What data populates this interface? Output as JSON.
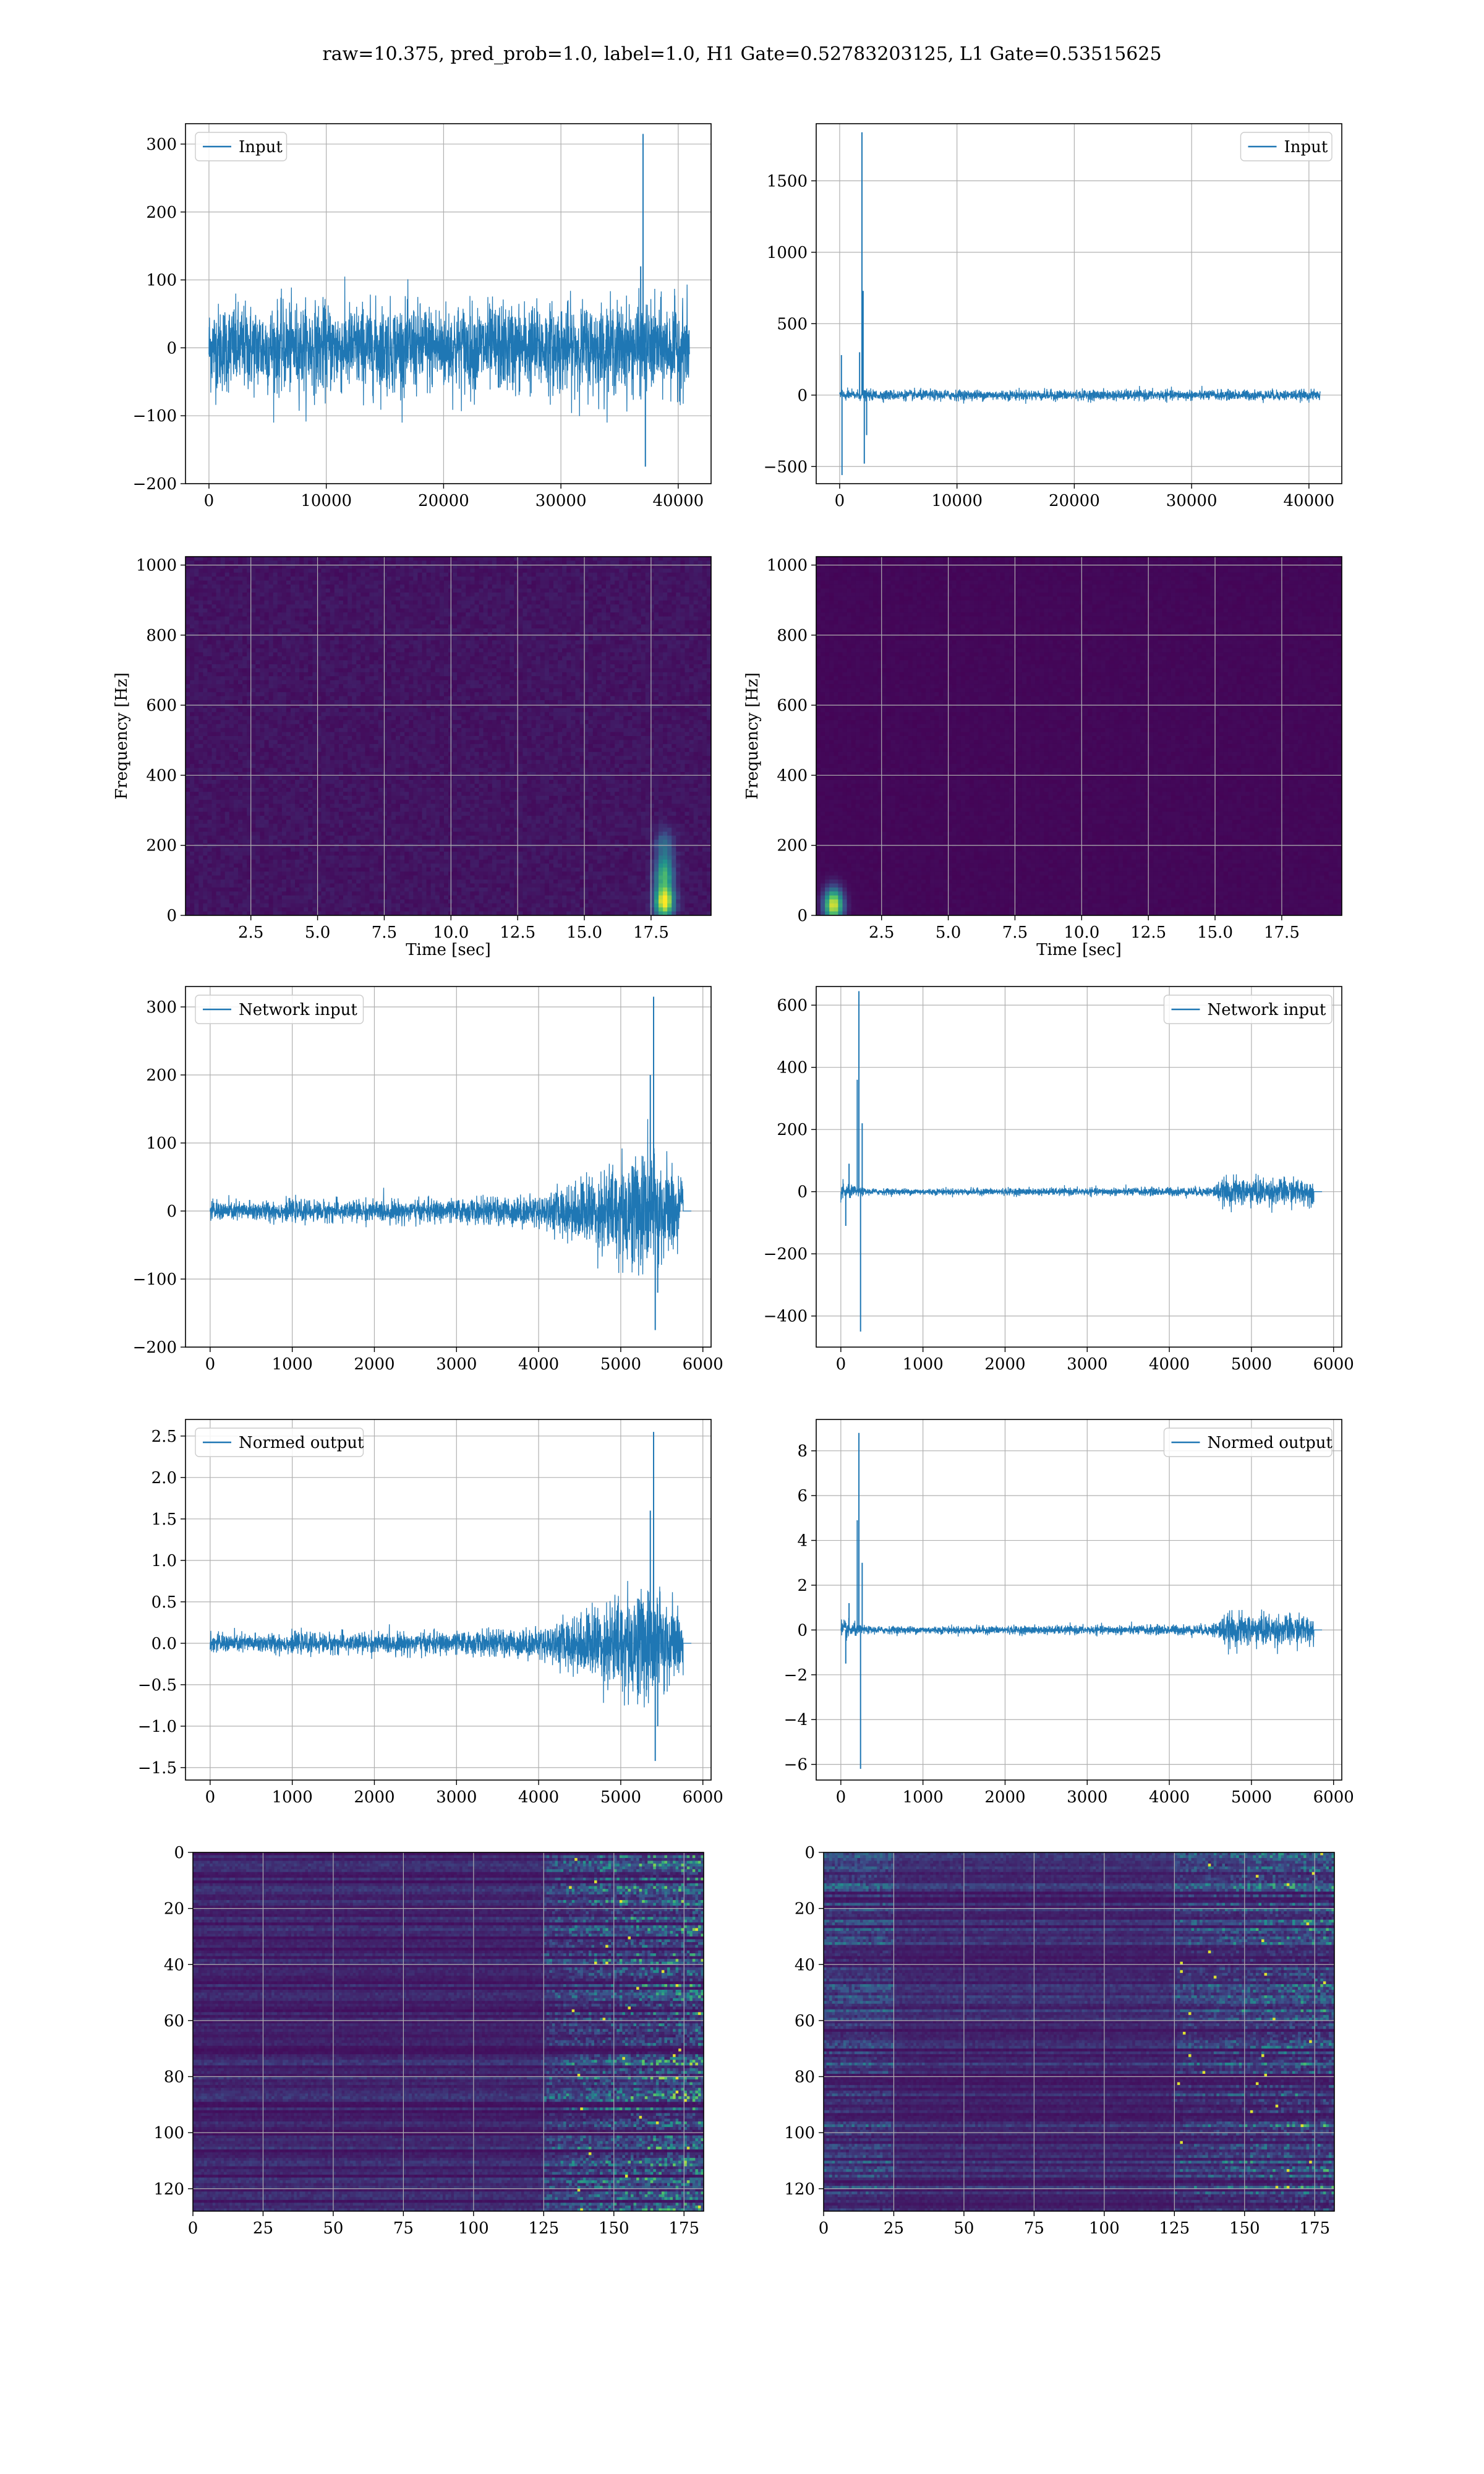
{
  "figure": {
    "suptitle": "raw=10.375, pred_prob=1.0, label=1.0, H1 Gate=0.52783203125, L1 Gate=0.53515625"
  },
  "colors": {
    "line": "#1f77b4",
    "grid": "#b0b0b0",
    "viridis_dark": "#440154",
    "viridis_bright": "#fde725"
  },
  "chart_data": [
    {
      "id": "h1-input",
      "type": "line",
      "legend": [
        "Input"
      ],
      "legend_loc": "upper left",
      "xlim": [
        -2000,
        42800
      ],
      "ylim": [
        -200,
        330
      ],
      "xticks": [
        0,
        10000,
        20000,
        30000,
        40000
      ],
      "yticks": [
        -200,
        -100,
        0,
        100,
        200,
        300
      ],
      "xticklabels": [
        "0",
        "10000",
        "20000",
        "30000",
        "40000"
      ],
      "yticklabels": [
        "−200",
        "−100",
        "0",
        "100",
        "200",
        "300"
      ],
      "xlabel": "",
      "ylabel": "",
      "grid": true,
      "series": [
        {
          "x": [
            0,
            40960
          ],
          "noise_sigma": 32,
          "noise_clip": 110,
          "envelope": [
            [
              0,
              1
            ],
            [
              40960,
              1
            ]
          ],
          "spikes": [
            [
              37000,
              315
            ],
            [
              37200,
              -175
            ],
            [
              36800,
              120
            ]
          ]
        }
      ]
    },
    {
      "id": "l1-input",
      "type": "line",
      "legend": [
        "Input"
      ],
      "legend_loc": "upper right",
      "xlim": [
        -2000,
        42800
      ],
      "ylim": [
        -620,
        1900
      ],
      "xticks": [
        0,
        10000,
        20000,
        30000,
        40000
      ],
      "yticks": [
        -500,
        0,
        500,
        1000,
        1500
      ],
      "xticklabels": [
        "0",
        "10000",
        "20000",
        "30000",
        "40000"
      ],
      "yticklabels": [
        "−500",
        "0",
        "500",
        "1000",
        "1500"
      ],
      "xlabel": "",
      "ylabel": "",
      "grid": true,
      "series": [
        {
          "x": [
            0,
            40960
          ],
          "noise_sigma": 18,
          "noise_clip": 100,
          "envelope": [
            [
              0,
              1
            ],
            [
              40960,
              1
            ]
          ],
          "spikes": [
            [
              1900,
              1840
            ],
            [
              2000,
              730
            ],
            [
              2100,
              -480
            ],
            [
              200,
              -560
            ],
            [
              150,
              280
            ],
            [
              1700,
              300
            ],
            [
              2300,
              -280
            ]
          ]
        }
      ]
    },
    {
      "id": "h1-spectrogram",
      "type": "heatmap",
      "colormap": "viridis",
      "xlim": [
        0.05,
        19.75
      ],
      "ylim": [
        0,
        1024
      ],
      "xticks": [
        2.5,
        5.0,
        7.5,
        10.0,
        12.5,
        15.0,
        17.5
      ],
      "yticks": [
        0,
        200,
        400,
        600,
        800,
        1000
      ],
      "xticklabels": [
        "2.5",
        "5.0",
        "7.5",
        "10.0",
        "12.5",
        "15.0",
        "17.5"
      ],
      "yticklabels": [
        "0",
        "200",
        "400",
        "600",
        "800",
        "1000"
      ],
      "xlabel": "Time [sec]",
      "ylabel": "Frequency [Hz]",
      "grid": true,
      "background_level": 0.06,
      "hotspots": [
        [
          18.0,
          40,
          1.0
        ],
        [
          18.0,
          120,
          0.55
        ],
        [
          18.0,
          200,
          0.3
        ]
      ]
    },
    {
      "id": "l1-spectrogram",
      "type": "heatmap",
      "colormap": "viridis",
      "xlim": [
        0.05,
        19.75
      ],
      "ylim": [
        0,
        1024
      ],
      "xticks": [
        2.5,
        5.0,
        7.5,
        10.0,
        12.5,
        15.0,
        17.5
      ],
      "yticks": [
        0,
        200,
        400,
        600,
        800,
        1000
      ],
      "xticklabels": [
        "2.5",
        "5.0",
        "7.5",
        "10.0",
        "12.5",
        "15.0",
        "17.5"
      ],
      "yticklabels": [
        "0",
        "200",
        "400",
        "600",
        "800",
        "1000"
      ],
      "xlabel": "Time [sec]",
      "ylabel": "Frequency [Hz]",
      "grid": true,
      "background_level": 0.02,
      "hotspots": [
        [
          0.7,
          30,
          0.95
        ]
      ]
    },
    {
      "id": "h1-network-input",
      "type": "line",
      "legend": [
        "Network input"
      ],
      "legend_loc": "upper left",
      "xlim": [
        -300,
        6100
      ],
      "ylim": [
        -200,
        330
      ],
      "xticks": [
        0,
        1000,
        2000,
        3000,
        4000,
        5000,
        6000
      ],
      "yticks": [
        -200,
        -100,
        0,
        100,
        200,
        300
      ],
      "xticklabels": [
        "0",
        "1000",
        "2000",
        "3000",
        "4000",
        "5000",
        "6000"
      ],
      "yticklabels": [
        "−200",
        "−100",
        "0",
        "100",
        "200",
        "300"
      ],
      "xlabel": "",
      "ylabel": "",
      "grid": true,
      "series": [
        {
          "x": [
            0,
            5760
          ],
          "flat_tail": [
            5760,
            5860
          ],
          "noise_sigma": 7,
          "noise_clip": 30,
          "envelope": [
            [
              0,
              1
            ],
            [
              3000,
              1.2
            ],
            [
              4000,
              1.6
            ],
            [
              4600,
              3.5
            ],
            [
              5000,
              5.5
            ],
            [
              5300,
              6.5
            ],
            [
              5600,
              5
            ],
            [
              5760,
              3
            ]
          ],
          "spikes": [
            [
              5400,
              315
            ],
            [
              5420,
              -175
            ],
            [
              5360,
              200
            ],
            [
              5450,
              -120
            ]
          ]
        }
      ]
    },
    {
      "id": "l1-network-input",
      "type": "line",
      "legend": [
        "Network input"
      ],
      "legend_loc": "upper right",
      "xlim": [
        -300,
        6100
      ],
      "ylim": [
        -500,
        660
      ],
      "xticks": [
        0,
        1000,
        2000,
        3000,
        4000,
        5000,
        6000
      ],
      "yticks": [
        -400,
        -200,
        0,
        200,
        400,
        600
      ],
      "xticklabels": [
        "0",
        "1000",
        "2000",
        "3000",
        "4000",
        "5000",
        "6000"
      ],
      "yticklabels": [
        "−400",
        "−200",
        "0",
        "200",
        "400",
        "600"
      ],
      "xlabel": "",
      "ylabel": "",
      "grid": true,
      "series": [
        {
          "x": [
            0,
            5760
          ],
          "flat_tail": [
            5760,
            5860
          ],
          "noise_sigma": 5,
          "noise_clip": 25,
          "envelope": [
            [
              0,
              3
            ],
            [
              300,
              1
            ],
            [
              3000,
              1.2
            ],
            [
              4500,
              1.5
            ],
            [
              4700,
              4.5
            ],
            [
              5000,
              4.5
            ],
            [
              5760,
              4
            ]
          ],
          "spikes": [
            [
              220,
              645
            ],
            [
              240,
              -450
            ],
            [
              260,
              220
            ],
            [
              200,
              360
            ],
            [
              100,
              90
            ],
            [
              60,
              -110
            ]
          ]
        }
      ]
    },
    {
      "id": "h1-normed-output",
      "type": "line",
      "legend": [
        "Normed output"
      ],
      "legend_loc": "upper left",
      "xlim": [
        -300,
        6100
      ],
      "ylim": [
        -1.65,
        2.7
      ],
      "xticks": [
        0,
        1000,
        2000,
        3000,
        4000,
        5000,
        6000
      ],
      "yticks": [
        -1.5,
        -1.0,
        -0.5,
        0.0,
        0.5,
        1.0,
        1.5,
        2.0,
        2.5
      ],
      "xticklabels": [
        "0",
        "1000",
        "2000",
        "3000",
        "4000",
        "5000",
        "6000"
      ],
      "yticklabels": [
        "−1.5",
        "−1.0",
        "−0.5",
        "0.0",
        "0.5",
        "1.0",
        "1.5",
        "2.0",
        "2.5"
      ],
      "xlabel": "",
      "ylabel": "",
      "grid": true,
      "series": [
        {
          "x": [
            0,
            5760
          ],
          "flat_tail": [
            5760,
            5860
          ],
          "noise_sigma": 0.055,
          "noise_clip": 0.2,
          "envelope": [
            [
              0,
              1
            ],
            [
              3000,
              1.2
            ],
            [
              4000,
              1.6
            ],
            [
              4600,
              3.5
            ],
            [
              5000,
              5.5
            ],
            [
              5300,
              6.5
            ],
            [
              5600,
              5
            ],
            [
              5760,
              3
            ]
          ],
          "spikes": [
            [
              5400,
              2.55
            ],
            [
              5420,
              -1.42
            ],
            [
              5360,
              1.6
            ],
            [
              5450,
              -1.0
            ]
          ]
        }
      ]
    },
    {
      "id": "l1-normed-output",
      "type": "line",
      "legend": [
        "Normed output"
      ],
      "legend_loc": "upper right",
      "xlim": [
        -300,
        6100
      ],
      "ylim": [
        -6.7,
        9.4
      ],
      "xticks": [
        0,
        1000,
        2000,
        3000,
        4000,
        5000,
        6000
      ],
      "yticks": [
        -6,
        -4,
        -2,
        0,
        2,
        4,
        6,
        8
      ],
      "xticklabels": [
        "0",
        "1000",
        "2000",
        "3000",
        "4000",
        "5000",
        "6000"
      ],
      "yticklabels": [
        "−6",
        "−4",
        "−2",
        "0",
        "2",
        "4",
        "6",
        "8"
      ],
      "xlabel": "",
      "ylabel": "",
      "grid": true,
      "series": [
        {
          "x": [
            0,
            5760
          ],
          "flat_tail": [
            5760,
            5860
          ],
          "noise_sigma": 0.08,
          "noise_clip": 0.35,
          "envelope": [
            [
              0,
              3
            ],
            [
              300,
              1
            ],
            [
              3000,
              1.2
            ],
            [
              4500,
              1.5
            ],
            [
              4700,
              4.5
            ],
            [
              5000,
              4.5
            ],
            [
              5760,
              4
            ]
          ],
          "spikes": [
            [
              220,
              8.8
            ],
            [
              240,
              -6.2
            ],
            [
              260,
              3.0
            ],
            [
              200,
              4.9
            ],
            [
              100,
              1.2
            ],
            [
              60,
              -1.5
            ]
          ]
        }
      ]
    },
    {
      "id": "h1-feature-map",
      "type": "heatmap",
      "colormap": "viridis",
      "xlim": [
        0,
        182
      ],
      "ylim": [
        128,
        0
      ],
      "xticks": [
        0,
        25,
        50,
        75,
        100,
        125,
        150,
        175
      ],
      "yticks": [
        0,
        20,
        40,
        60,
        80,
        100,
        120
      ],
      "xticklabels": [
        "0",
        "25",
        "50",
        "75",
        "100",
        "125",
        "150",
        "175"
      ],
      "yticklabels": [
        "0",
        "20",
        "40",
        "60",
        "80",
        "100",
        "120"
      ],
      "xlabel": "",
      "ylabel": "",
      "grid": true,
      "background_level": 0.12,
      "activity_region": [
        125,
        182
      ],
      "activity_level": 0.55
    },
    {
      "id": "l1-feature-map",
      "type": "heatmap",
      "colormap": "viridis",
      "xlim": [
        0,
        182
      ],
      "ylim": [
        128,
        0
      ],
      "xticks": [
        0,
        25,
        50,
        75,
        100,
        125,
        150,
        175
      ],
      "yticks": [
        0,
        20,
        40,
        60,
        80,
        100,
        120
      ],
      "xticklabels": [
        "0",
        "25",
        "50",
        "75",
        "100",
        "125",
        "150",
        "175"
      ],
      "yticklabels": [
        "0",
        "20",
        "40",
        "60",
        "80",
        "100",
        "120"
      ],
      "xlabel": "",
      "ylabel": "",
      "grid": true,
      "background_level": 0.14,
      "activity_region": [
        125,
        182
      ],
      "activity_level": 0.4,
      "left_activity": [
        0,
        25
      ]
    }
  ]
}
